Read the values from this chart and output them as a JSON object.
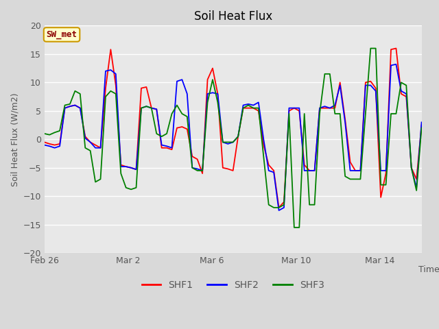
{
  "title": "Soil Heat Flux",
  "ylabel": "Soil Heat Flux (W/m2)",
  "xlabel": "Time",
  "ylim": [
    -20,
    20
  ],
  "yticks": [
    -20,
    -15,
    -10,
    -5,
    0,
    5,
    10,
    15,
    20
  ],
  "outer_bg": "#d9d9d9",
  "plot_bg": "#e8e8e8",
  "grid_color": "#ffffff",
  "line_colors": {
    "SHF1": "red",
    "SHF2": "blue",
    "SHF3": "green"
  },
  "annotation_text": "SW_met",
  "annotation_bg": "#ffffcc",
  "annotation_border": "#cc9900",
  "annotation_text_color": "#8b0000",
  "xtick_labels": [
    "Feb 26",
    "Mar 2",
    "Mar 6",
    "Mar 10",
    "Mar 14"
  ],
  "xtick_positions": [
    0,
    4,
    8,
    12,
    16
  ],
  "xlim": [
    0,
    18
  ],
  "figsize": [
    6.4,
    4.8
  ],
  "dpi": 100,
  "shf1": [
    -0.5,
    -0.8,
    -1.0,
    -0.8,
    5.5,
    5.8,
    6.0,
    5.5,
    0.5,
    -0.5,
    -1.0,
    -1.5,
    9.0,
    15.8,
    9.5,
    -4.5,
    -4.8,
    -5.0,
    -5.3,
    9.0,
    9.2,
    5.5,
    5.3,
    -1.5,
    -1.5,
    -1.8,
    2.0,
    2.2,
    1.8,
    -3.0,
    -3.5,
    -6.0,
    10.5,
    12.5,
    8.0,
    -5.0,
    -5.2,
    -5.5,
    0.5,
    5.5,
    5.5,
    5.5,
    5.0,
    -1.0,
    -4.5,
    -5.5,
    -12.0,
    -11.0,
    5.0,
    5.5,
    5.0,
    -4.5,
    -5.5,
    -5.5,
    5.5,
    5.5,
    5.5,
    5.5,
    10.0,
    3.5,
    -4.0,
    -5.5,
    -5.5,
    10.0,
    10.2,
    9.0,
    -10.2,
    -6.0,
    15.8,
    16.0,
    8.0,
    7.5,
    -5.0,
    -7.0,
    2.5
  ],
  "shf2": [
    -1.0,
    -1.2,
    -1.5,
    -1.2,
    5.5,
    5.8,
    6.0,
    5.5,
    0.2,
    -0.5,
    -1.5,
    -1.5,
    12.0,
    12.2,
    11.5,
    -4.8,
    -4.8,
    -5.0,
    -5.3,
    5.5,
    5.8,
    5.5,
    5.3,
    -1.0,
    -1.2,
    -1.5,
    10.2,
    10.5,
    8.0,
    -5.0,
    -5.2,
    -5.5,
    8.0,
    8.2,
    8.0,
    -0.5,
    -0.8,
    -0.5,
    0.5,
    6.0,
    6.2,
    6.0,
    6.5,
    0.0,
    -5.5,
    -5.8,
    -12.5,
    -12.0,
    5.5,
    5.5,
    5.5,
    -5.5,
    -5.5,
    -5.5,
    5.5,
    5.8,
    5.5,
    6.0,
    9.5,
    3.0,
    -5.5,
    -5.5,
    -5.5,
    9.5,
    9.5,
    8.5,
    -5.5,
    -5.5,
    13.0,
    13.2,
    8.5,
    8.0,
    -5.0,
    -8.5,
    3.0
  ],
  "shf3": [
    1.0,
    0.8,
    1.2,
    1.5,
    6.0,
    6.2,
    8.5,
    8.0,
    -1.5,
    -2.0,
    -7.5,
    -7.0,
    7.5,
    8.5,
    8.0,
    -6.0,
    -8.5,
    -8.8,
    -8.5,
    5.5,
    5.8,
    5.5,
    1.0,
    0.5,
    1.0,
    4.5,
    6.0,
    4.5,
    4.0,
    -5.0,
    -5.5,
    -5.5,
    6.5,
    10.5,
    6.5,
    -0.5,
    -0.5,
    -0.5,
    0.5,
    5.5,
    6.0,
    5.5,
    5.5,
    -3.0,
    -11.5,
    -12.0,
    -12.0,
    -11.5,
    4.5,
    -15.5,
    -15.5,
    4.5,
    -11.5,
    -11.5,
    4.5,
    11.5,
    11.5,
    4.5,
    4.5,
    -6.5,
    -7.0,
    -7.0,
    -7.0,
    4.5,
    16.0,
    16.0,
    -8.0,
    -8.0,
    4.5,
    4.5,
    10.0,
    9.5,
    -5.0,
    -9.0,
    2.0
  ]
}
